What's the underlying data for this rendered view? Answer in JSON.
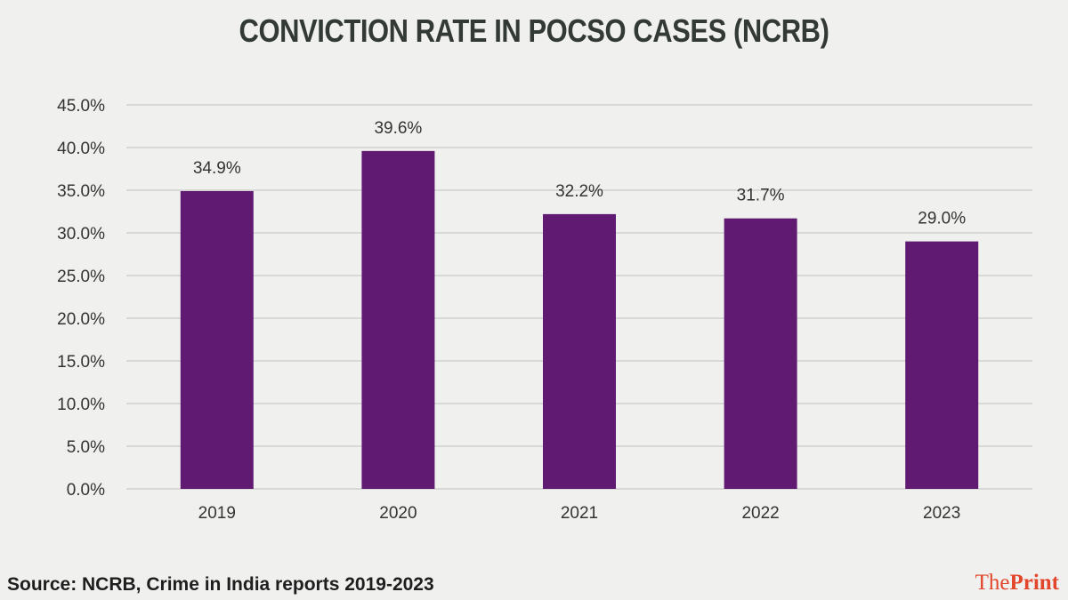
{
  "chart_data": {
    "type": "bar",
    "title": "CONVICTION RATE IN POCSO CASES (NCRB)",
    "categories": [
      "2019",
      "2020",
      "2021",
      "2022",
      "2023"
    ],
    "values": [
      34.9,
      39.6,
      32.2,
      31.7,
      29.0
    ],
    "value_labels": [
      "34.9%",
      "39.6%",
      "32.2%",
      "31.7%",
      "29.0%"
    ],
    "ylim": [
      0,
      45
    ],
    "yticks": [
      0,
      5,
      10,
      15,
      20,
      25,
      30,
      35,
      40,
      45
    ],
    "ytick_labels": [
      "0.0%",
      "5.0%",
      "10.0%",
      "15.0%",
      "20.0%",
      "25.0%",
      "30.0%",
      "35.0%",
      "40.0%",
      "45.0%"
    ],
    "xlabel": "",
    "ylabel": "",
    "grid": true,
    "bar_color": "#611a72",
    "grid_color": "#cfcfcf"
  },
  "source": "Source: NCRB, Crime in India reports 2019-2023",
  "brand": {
    "part1": "The",
    "part2": "Print",
    "color": "#e2462b"
  }
}
